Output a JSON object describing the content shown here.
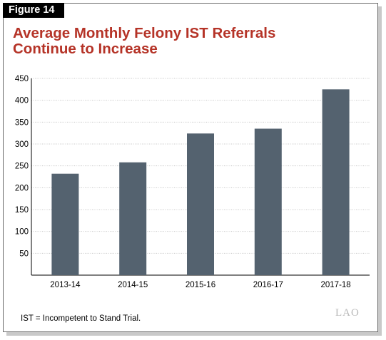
{
  "figure_label": "Figure 14",
  "title_lines": [
    "Average Monthly Felony IST Referrals",
    "Continue to Increase"
  ],
  "note": "IST = Incompetent to Stand Trial.",
  "logo_text": "LAO",
  "colors": {
    "bar": "#54626f",
    "title": "#b53327",
    "grid": "#c8c8c8"
  },
  "chart_data": {
    "type": "bar",
    "title": "Average Monthly Felony IST Referrals Continue to Increase",
    "xlabel": "",
    "ylabel": "",
    "categories": [
      "2013-14",
      "2014-15",
      "2015-16",
      "2016-17",
      "2017-18"
    ],
    "values": [
      232,
      258,
      324,
      335,
      425
    ],
    "ylim": [
      0,
      450
    ],
    "yticks": [
      50,
      100,
      150,
      200,
      250,
      300,
      350,
      400,
      450
    ],
    "grid": true
  }
}
